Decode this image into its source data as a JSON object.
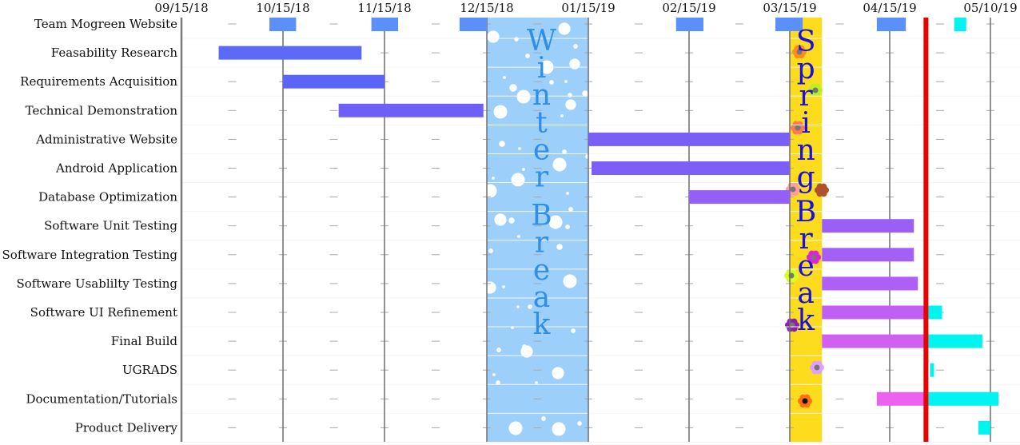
{
  "chart_data": {
    "type": "gantt",
    "title": "",
    "x_axis": {
      "ticks": [
        "09/15/18",
        "10/15/18",
        "11/15/18",
        "12/15/18",
        "01/15/19",
        "02/15/19",
        "03/15/19",
        "04/15/19",
        "05/10/19"
      ],
      "range": [
        "09/15/18",
        "05/10/19"
      ],
      "grid": "vertical lines at ticks, dashed minor marks between"
    },
    "rows": [
      "Team Mogreen Website",
      "Feasability Research",
      "Requirements Acquisition",
      "Technical Demonstration",
      "Administrative Website",
      "Android Application",
      "Database Optimization",
      "Software Unit Testing",
      "Software Integration Testing",
      "Software Usablilty Testing",
      "Software UI Refinement",
      "Final Build",
      "UGRADS",
      "Documentation/Tutorials",
      "Product Delivery"
    ],
    "tasks": [
      {
        "row": 0,
        "segments": [
          {
            "start": "10/11/18",
            "end": "10/19/18",
            "color": "#5b8ff9",
            "status": "milestone"
          },
          {
            "start": "11/11/18",
            "end": "11/19/18",
            "color": "#5b8ff9",
            "status": "milestone"
          },
          {
            "start": "12/07/18",
            "end": "12/15/18",
            "color": "#5b8ff9",
            "status": "milestone"
          },
          {
            "start": "02/11/19",
            "end": "02/19/19",
            "color": "#5b8ff9",
            "status": "milestone"
          },
          {
            "start": "03/11/19",
            "end": "03/19/19",
            "color": "#5b8ff9",
            "status": "milestone"
          },
          {
            "start": "04/11/19",
            "end": "04/19/19",
            "color": "#5b8ff9",
            "status": "milestone"
          },
          {
            "start": "05/01/19",
            "end": "05/04/19",
            "color": "#00f5f0",
            "status": "remaining"
          }
        ]
      },
      {
        "row": 1,
        "segments": [
          {
            "start": "09/26/18",
            "end": "11/08/18",
            "color": "#5b6bf7",
            "status": "done"
          }
        ]
      },
      {
        "row": 2,
        "segments": [
          {
            "start": "10/15/18",
            "end": "11/15/18",
            "color": "#5a64f7",
            "status": "done"
          }
        ]
      },
      {
        "row": 3,
        "segments": [
          {
            "start": "11/01/18",
            "end": "12/14/18",
            "color": "#6e5ff6",
            "status": "done"
          }
        ]
      },
      {
        "row": 4,
        "segments": [
          {
            "start": "01/15/19",
            "end": "03/15/19",
            "color": "#7a5ff6",
            "status": "done"
          }
        ]
      },
      {
        "row": 5,
        "segments": [
          {
            "start": "01/16/19",
            "end": "03/15/19",
            "color": "#7c5ff6",
            "status": "done"
          }
        ]
      },
      {
        "row": 6,
        "segments": [
          {
            "start": "02/15/19",
            "end": "03/15/19",
            "color": "#935ff6",
            "status": "done"
          }
        ]
      },
      {
        "row": 7,
        "segments": [
          {
            "start": "03/25/19",
            "end": "04/21/19",
            "color": "#9a60f6",
            "status": "done"
          }
        ]
      },
      {
        "row": 8,
        "segments": [
          {
            "start": "03/25/19",
            "end": "04/21/19",
            "color": "#a460f6",
            "status": "done"
          }
        ]
      },
      {
        "row": 9,
        "segments": [
          {
            "start": "03/25/19",
            "end": "04/22/19",
            "color": "#ae60f6",
            "status": "done"
          }
        ]
      },
      {
        "row": 10,
        "segments": [
          {
            "start": "03/25/19",
            "end": "04/24/19",
            "color": "#c060f2",
            "status": "done"
          },
          {
            "start": "04/24/19",
            "end": "04/28/19",
            "color": "#00f5f0",
            "status": "remaining"
          }
        ]
      },
      {
        "row": 11,
        "segments": [
          {
            "start": "03/25/19",
            "end": "04/24/19",
            "color": "#d060f0",
            "status": "done"
          },
          {
            "start": "04/24/19",
            "end": "05/08/19",
            "color": "#00f5f0",
            "status": "remaining"
          }
        ]
      },
      {
        "row": 12,
        "segments": [
          {
            "start": "04/25/19",
            "end": "04/26/19",
            "color": "#00f5f0",
            "status": "remaining"
          }
        ]
      },
      {
        "row": 13,
        "segments": [
          {
            "start": "04/11/19",
            "end": "04/24/19",
            "color": "#ee60f0",
            "status": "done"
          },
          {
            "start": "04/24/19",
            "end": "05/12/19",
            "color": "#00f5f0",
            "status": "remaining"
          }
        ]
      },
      {
        "row": 14,
        "segments": [
          {
            "start": "05/07/19",
            "end": "05/10/19",
            "color": "#00f5f0",
            "status": "remaining"
          }
        ]
      }
    ],
    "today_marker": {
      "date": "04/24/19",
      "color": "#ee0000"
    },
    "annotations": [
      {
        "label": "Winter Break",
        "start": "12/15/18",
        "end": "01/15/19",
        "color": "#9dcffb",
        "text_color": "#2f8fe6",
        "decoration": "snowflakes"
      },
      {
        "label": "Spring Break",
        "start": "03/15/19",
        "end": "03/25/19",
        "color": "#fcdc1c",
        "text_color": "#1a10d8",
        "decoration": "flowers"
      }
    ],
    "legend": "none"
  }
}
